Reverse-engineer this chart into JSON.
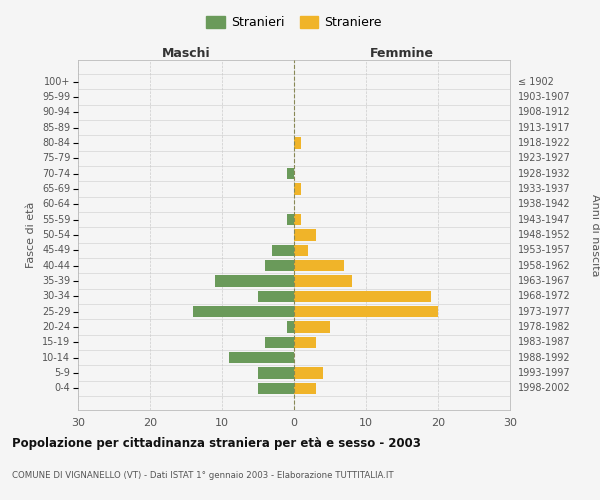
{
  "age_groups": [
    "0-4",
    "5-9",
    "10-14",
    "15-19",
    "20-24",
    "25-29",
    "30-34",
    "35-39",
    "40-44",
    "45-49",
    "50-54",
    "55-59",
    "60-64",
    "65-69",
    "70-74",
    "75-79",
    "80-84",
    "85-89",
    "90-94",
    "95-99",
    "100+"
  ],
  "birth_years": [
    "1998-2002",
    "1993-1997",
    "1988-1992",
    "1983-1987",
    "1978-1982",
    "1973-1977",
    "1968-1972",
    "1963-1967",
    "1958-1962",
    "1953-1957",
    "1948-1952",
    "1943-1947",
    "1938-1942",
    "1933-1937",
    "1928-1932",
    "1923-1927",
    "1918-1922",
    "1913-1917",
    "1908-1912",
    "1903-1907",
    "≤ 1902"
  ],
  "maschi": [
    5,
    5,
    9,
    4,
    1,
    14,
    5,
    11,
    4,
    3,
    0,
    1,
    0,
    0,
    1,
    0,
    0,
    0,
    0,
    0,
    0
  ],
  "femmine": [
    3,
    4,
    0,
    3,
    5,
    20,
    19,
    8,
    7,
    2,
    3,
    1,
    0,
    1,
    0,
    0,
    1,
    0,
    0,
    0,
    0
  ],
  "color_maschi": "#6a9a5a",
  "color_femmine": "#f0b429",
  "title": "Popolazione per cittadinanza straniera per età e sesso - 2003",
  "subtitle": "COMUNE DI VIGNANELLO (VT) - Dati ISTAT 1° gennaio 2003 - Elaborazione TUTTITALIA.IT",
  "legend_maschi": "Stranieri",
  "legend_femmine": "Straniere",
  "label_maschi": "Maschi",
  "label_femmine": "Femmine",
  "ylabel_left": "Fasce di età",
  "ylabel_right": "Anni di nascita",
  "xlim": 30,
  "background_color": "#f5f5f5",
  "grid_color": "#cccccc",
  "bar_height": 0.75
}
